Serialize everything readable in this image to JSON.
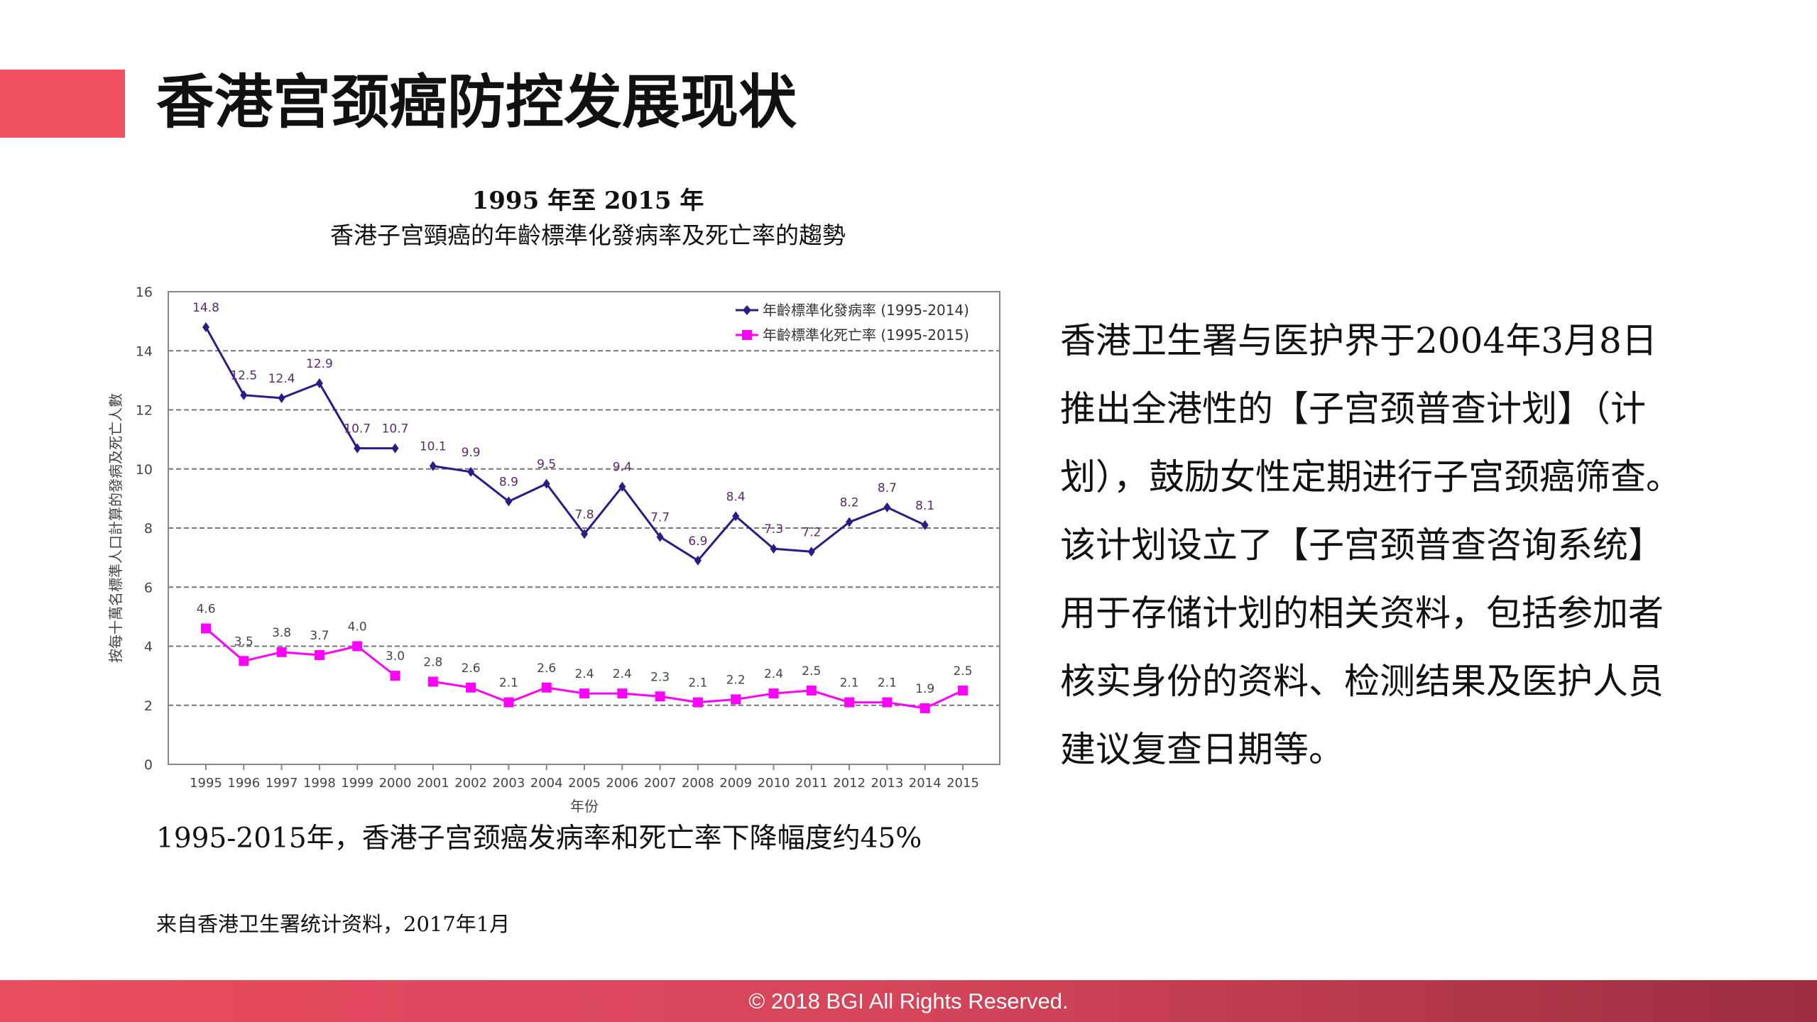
{
  "slide": {
    "title": "香港宫颈癌防控发展现状",
    "caption": "1995-2015年，香港子宫颈癌发病率和死亡率下降幅度约45%",
    "source": "来自香港卫生署统计资料，2017年1月",
    "body_lines": [
      "香港卫生署与医护界于2004年3月8日",
      "推出全港性的【子宫颈普查计划】（计",
      "划），鼓励女性定期进行子宫颈癌筛查。",
      "该计划设立了【子宫颈普查咨询系统】",
      "用于存储计划的相关资料，包括参加者",
      "核实身份的资料、检测结果及医护人员",
      "建议复查日期等。"
    ],
    "footer": "© 2018 BGI All Rights Reserved.",
    "accent_color": "#f0505f"
  },
  "chart_data": {
    "type": "line",
    "title": "1995 年至 2015 年",
    "subtitle": "香港子宫頸癌的年齡標準化發病率及死亡率的趨勢",
    "xlabel": "年份",
    "ylabel": "按每十萬名標準人口計算的發病及死亡人數",
    "ylim": [
      0,
      16
    ],
    "yticks": [
      0,
      2,
      4,
      6,
      8,
      10,
      12,
      14,
      16
    ],
    "grid": true,
    "legend": "top-right",
    "categories": [
      "1995",
      "1996",
      "1997",
      "1998",
      "1999",
      "2000",
      "2001",
      "2002",
      "2003",
      "2004",
      "2005",
      "2006",
      "2007",
      "2008",
      "2009",
      "2010",
      "2011",
      "2012",
      "2013",
      "2014",
      "2015"
    ],
    "series": [
      {
        "name": "年齡標準化發病率 (1995-2014)",
        "color": "#2e1a87",
        "marker": "diamond",
        "values": [
          14.8,
          12.5,
          12.4,
          12.9,
          10.7,
          10.7,
          10.1,
          9.9,
          8.9,
          9.5,
          7.8,
          9.4,
          7.7,
          6.9,
          8.4,
          7.3,
          7.2,
          8.2,
          8.7,
          8.1,
          null
        ]
      },
      {
        "name": "年齡標準化死亡率 (1995-2015)",
        "color": "#ff00ff",
        "marker": "square",
        "values": [
          4.6,
          3.5,
          3.8,
          3.7,
          4.0,
          3.0,
          2.8,
          2.6,
          2.1,
          2.6,
          2.4,
          2.4,
          2.3,
          2.1,
          2.2,
          2.4,
          2.5,
          2.1,
          2.1,
          1.9,
          2.5
        ]
      }
    ]
  }
}
